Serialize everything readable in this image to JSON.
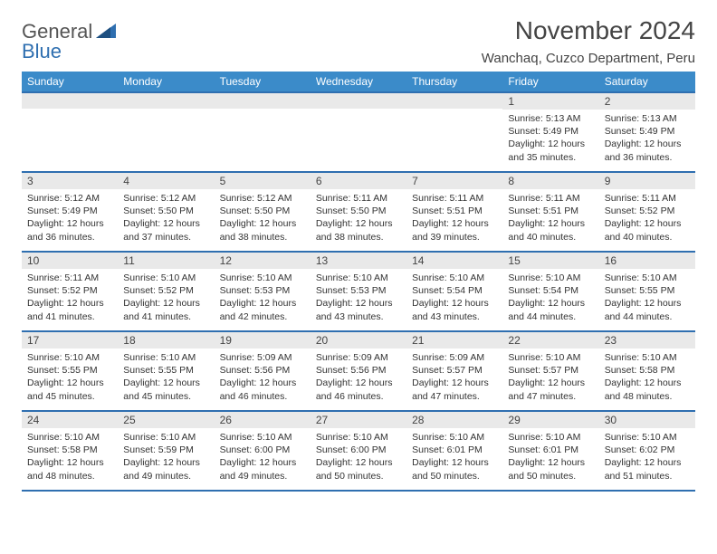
{
  "logo": {
    "word1": "General",
    "word2": "Blue"
  },
  "header": {
    "month_title": "November 2024",
    "location": "Wanchaq, Cuzco Department, Peru"
  },
  "colors": {
    "header_bg": "#3b8bc9",
    "header_border": "#2f6fb0",
    "daynum_bg": "#e9e9e9",
    "text": "#333333"
  },
  "calendar": {
    "day_headers": [
      "Sunday",
      "Monday",
      "Tuesday",
      "Wednesday",
      "Thursday",
      "Friday",
      "Saturday"
    ],
    "weeks": [
      [
        null,
        null,
        null,
        null,
        null,
        {
          "n": "1",
          "sunrise": "Sunrise: 5:13 AM",
          "sunset": "Sunset: 5:49 PM",
          "daylight": "Daylight: 12 hours and 35 minutes."
        },
        {
          "n": "2",
          "sunrise": "Sunrise: 5:13 AM",
          "sunset": "Sunset: 5:49 PM",
          "daylight": "Daylight: 12 hours and 36 minutes."
        }
      ],
      [
        {
          "n": "3",
          "sunrise": "Sunrise: 5:12 AM",
          "sunset": "Sunset: 5:49 PM",
          "daylight": "Daylight: 12 hours and 36 minutes."
        },
        {
          "n": "4",
          "sunrise": "Sunrise: 5:12 AM",
          "sunset": "Sunset: 5:50 PM",
          "daylight": "Daylight: 12 hours and 37 minutes."
        },
        {
          "n": "5",
          "sunrise": "Sunrise: 5:12 AM",
          "sunset": "Sunset: 5:50 PM",
          "daylight": "Daylight: 12 hours and 38 minutes."
        },
        {
          "n": "6",
          "sunrise": "Sunrise: 5:11 AM",
          "sunset": "Sunset: 5:50 PM",
          "daylight": "Daylight: 12 hours and 38 minutes."
        },
        {
          "n": "7",
          "sunrise": "Sunrise: 5:11 AM",
          "sunset": "Sunset: 5:51 PM",
          "daylight": "Daylight: 12 hours and 39 minutes."
        },
        {
          "n": "8",
          "sunrise": "Sunrise: 5:11 AM",
          "sunset": "Sunset: 5:51 PM",
          "daylight": "Daylight: 12 hours and 40 minutes."
        },
        {
          "n": "9",
          "sunrise": "Sunrise: 5:11 AM",
          "sunset": "Sunset: 5:52 PM",
          "daylight": "Daylight: 12 hours and 40 minutes."
        }
      ],
      [
        {
          "n": "10",
          "sunrise": "Sunrise: 5:11 AM",
          "sunset": "Sunset: 5:52 PM",
          "daylight": "Daylight: 12 hours and 41 minutes."
        },
        {
          "n": "11",
          "sunrise": "Sunrise: 5:10 AM",
          "sunset": "Sunset: 5:52 PM",
          "daylight": "Daylight: 12 hours and 41 minutes."
        },
        {
          "n": "12",
          "sunrise": "Sunrise: 5:10 AM",
          "sunset": "Sunset: 5:53 PM",
          "daylight": "Daylight: 12 hours and 42 minutes."
        },
        {
          "n": "13",
          "sunrise": "Sunrise: 5:10 AM",
          "sunset": "Sunset: 5:53 PM",
          "daylight": "Daylight: 12 hours and 43 minutes."
        },
        {
          "n": "14",
          "sunrise": "Sunrise: 5:10 AM",
          "sunset": "Sunset: 5:54 PM",
          "daylight": "Daylight: 12 hours and 43 minutes."
        },
        {
          "n": "15",
          "sunrise": "Sunrise: 5:10 AM",
          "sunset": "Sunset: 5:54 PM",
          "daylight": "Daylight: 12 hours and 44 minutes."
        },
        {
          "n": "16",
          "sunrise": "Sunrise: 5:10 AM",
          "sunset": "Sunset: 5:55 PM",
          "daylight": "Daylight: 12 hours and 44 minutes."
        }
      ],
      [
        {
          "n": "17",
          "sunrise": "Sunrise: 5:10 AM",
          "sunset": "Sunset: 5:55 PM",
          "daylight": "Daylight: 12 hours and 45 minutes."
        },
        {
          "n": "18",
          "sunrise": "Sunrise: 5:10 AM",
          "sunset": "Sunset: 5:55 PM",
          "daylight": "Daylight: 12 hours and 45 minutes."
        },
        {
          "n": "19",
          "sunrise": "Sunrise: 5:09 AM",
          "sunset": "Sunset: 5:56 PM",
          "daylight": "Daylight: 12 hours and 46 minutes."
        },
        {
          "n": "20",
          "sunrise": "Sunrise: 5:09 AM",
          "sunset": "Sunset: 5:56 PM",
          "daylight": "Daylight: 12 hours and 46 minutes."
        },
        {
          "n": "21",
          "sunrise": "Sunrise: 5:09 AM",
          "sunset": "Sunset: 5:57 PM",
          "daylight": "Daylight: 12 hours and 47 minutes."
        },
        {
          "n": "22",
          "sunrise": "Sunrise: 5:10 AM",
          "sunset": "Sunset: 5:57 PM",
          "daylight": "Daylight: 12 hours and 47 minutes."
        },
        {
          "n": "23",
          "sunrise": "Sunrise: 5:10 AM",
          "sunset": "Sunset: 5:58 PM",
          "daylight": "Daylight: 12 hours and 48 minutes."
        }
      ],
      [
        {
          "n": "24",
          "sunrise": "Sunrise: 5:10 AM",
          "sunset": "Sunset: 5:58 PM",
          "daylight": "Daylight: 12 hours and 48 minutes."
        },
        {
          "n": "25",
          "sunrise": "Sunrise: 5:10 AM",
          "sunset": "Sunset: 5:59 PM",
          "daylight": "Daylight: 12 hours and 49 minutes."
        },
        {
          "n": "26",
          "sunrise": "Sunrise: 5:10 AM",
          "sunset": "Sunset: 6:00 PM",
          "daylight": "Daylight: 12 hours and 49 minutes."
        },
        {
          "n": "27",
          "sunrise": "Sunrise: 5:10 AM",
          "sunset": "Sunset: 6:00 PM",
          "daylight": "Daylight: 12 hours and 50 minutes."
        },
        {
          "n": "28",
          "sunrise": "Sunrise: 5:10 AM",
          "sunset": "Sunset: 6:01 PM",
          "daylight": "Daylight: 12 hours and 50 minutes."
        },
        {
          "n": "29",
          "sunrise": "Sunrise: 5:10 AM",
          "sunset": "Sunset: 6:01 PM",
          "daylight": "Daylight: 12 hours and 50 minutes."
        },
        {
          "n": "30",
          "sunrise": "Sunrise: 5:10 AM",
          "sunset": "Sunset: 6:02 PM",
          "daylight": "Daylight: 12 hours and 51 minutes."
        }
      ]
    ]
  }
}
